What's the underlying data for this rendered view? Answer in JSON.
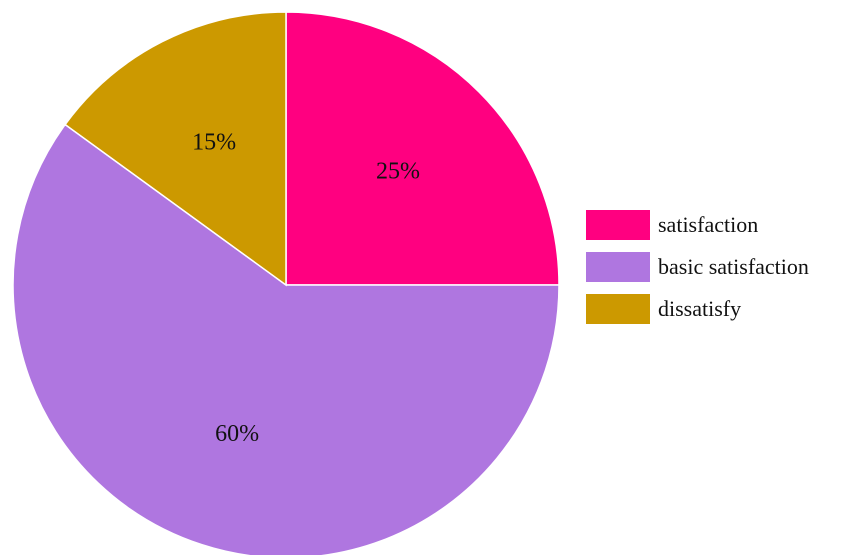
{
  "chart_data": {
    "type": "pie",
    "title": "",
    "start_angle": "12 o'clock",
    "direction": "clockwise",
    "legend_position": "right",
    "slices": [
      {
        "label": "satisfaction",
        "value": 25,
        "value_label": "25%",
        "color": "#FF0080"
      },
      {
        "label": "basic satisfaction",
        "value": 60,
        "value_label": "60%",
        "color": "#AF76E0"
      },
      {
        "label": "dissatisfy",
        "value": 15,
        "value_label": "15%",
        "color": "#CC9900"
      }
    ],
    "slice_border_color": "#FFFFFF"
  }
}
